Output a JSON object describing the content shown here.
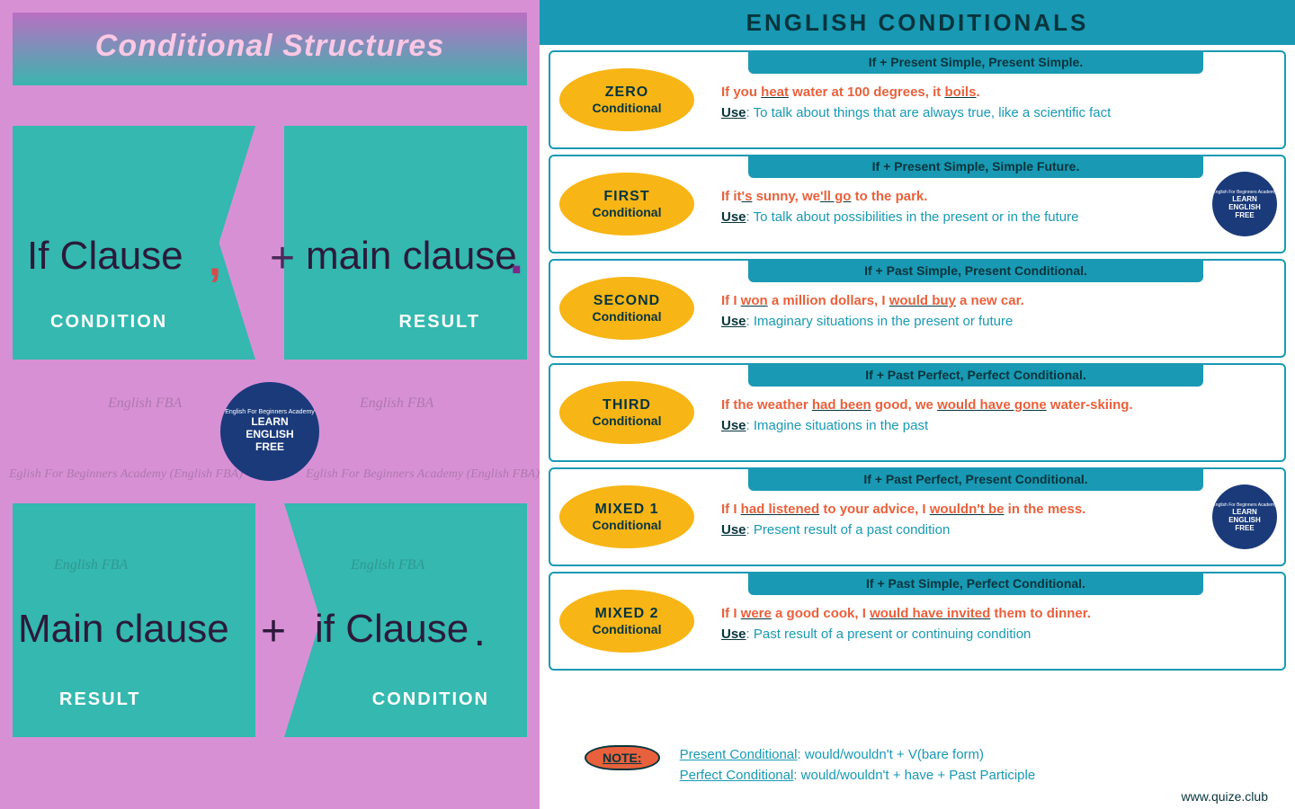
{
  "colors": {
    "pink_bg": "#d890d5",
    "teal_block": "#34b8af",
    "header_teal": "#1999b3",
    "header_text": "#07343d",
    "pill_yellow": "#f7b516",
    "example_orange": "#e8613c",
    "use_teal": "#1999b3",
    "badge_blue": "#1a3a7a",
    "left_title_pink": "#fbc7e4"
  },
  "left": {
    "title": "Conditional Structures",
    "top": {
      "if": "If Clause",
      "comma": ",",
      "plus": "+",
      "main": "main clause",
      "period": ".",
      "condition": "CONDITION",
      "result": "RESULT"
    },
    "bot": {
      "main": "Main clause",
      "plus": "+",
      "if": "if Clause",
      "period": ".",
      "result": "RESULT",
      "condition": "CONDITION"
    },
    "badge": {
      "small": "English For Beginners Academy",
      "line1": "LEARN",
      "line2": "ENGLISH",
      "line3": "FREE"
    },
    "watermarks": [
      "English FBA",
      "English FBA",
      "Eglish For Beginners Academy (English FBA)",
      "Eglish For Beginners Academy (English FBA)",
      "English FBA",
      "English FBA"
    ]
  },
  "right": {
    "title": "ENGLISH CONDITIONALS",
    "cards": [
      {
        "name": "ZERO",
        "sub": "Conditional",
        "formula": "If + Present Simple, Present Simple.",
        "example": "If you <u>heat</u> water at 100 degrees, it <u>boils</u>.",
        "use": "To talk about things that are always true, like a scientific fact",
        "badge": false
      },
      {
        "name": "FIRST",
        "sub": "Conditional",
        "formula": "If + Present Simple, Simple Future.",
        "example": "If it<u>'s</u> sunny, we<u>'ll go</u> to the park.",
        "use": "To talk about possibilities in the present or in the future",
        "badge": true
      },
      {
        "name": "SECOND",
        "sub": "Conditional",
        "formula": "If + Past Simple, Present Conditional.",
        "example": "If I <u>won</u> a million dollars, I <u>would buy</u> a new car.",
        "use": "Imaginary situations in the present or future",
        "badge": false
      },
      {
        "name": "THIRD",
        "sub": "Conditional",
        "formula": "If + Past Perfect, Perfect Conditional.",
        "example": "If the weather <u>had been</u> good, we <u>would have gone</u> water-skiing.",
        "use": "Imagine situations in the past",
        "badge": false
      },
      {
        "name": "MIXED 1",
        "sub": "Conditional",
        "formula": "If + Past Perfect, Present Conditional.",
        "example": "If I <u>had listened</u> to your advice, I <u>wouldn't be</u> in the mess.",
        "use": "Present result of a past condition",
        "badge": true
      },
      {
        "name": "MIXED 2",
        "sub": "Conditional",
        "formula": "If + Past Simple, Perfect Conditional.",
        "example": "If I <u>were</u> a good cook, I <u>would have invited</u> them to dinner.",
        "use": "Past result of a present or continuing condition",
        "badge": false
      }
    ],
    "note": {
      "label": "NOTE:",
      "line1": "<span class='u'>Present Conditional</span>: would/wouldn't + V(bare form)",
      "line2": "<span class='u'>Perfect Conditional</span>: would/wouldn't + have + Past Participle"
    },
    "footer": "www.quize.club",
    "badge": {
      "small": "English For Beginners Academy",
      "line1": "LEARN",
      "line2": "ENGLISH",
      "line3": "FREE"
    }
  }
}
